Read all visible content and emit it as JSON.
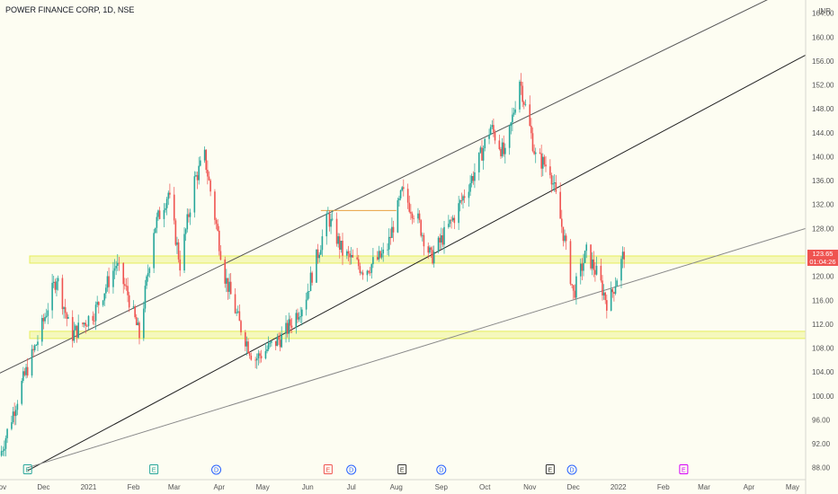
{
  "header": {
    "title": "POWER FINANCE CORP, 1D, NSE",
    "currency": "INR"
  },
  "colors": {
    "up": "#26a69a",
    "down": "#ef5350",
    "background": "#fdfdf2",
    "zone": "#e6ee5c",
    "price_tag": "#ef5350"
  },
  "price_tag": {
    "value": "123.65",
    "countdown": "01:04:26"
  },
  "chart_data": {
    "type": "candlestick",
    "title": "",
    "xlabel": "",
    "ylabel": "",
    "x_range": [
      "2020-11-01",
      "2022-05-10"
    ],
    "ylim": [
      86,
      165
    ],
    "y_ticks": [
      88,
      92,
      96,
      100,
      104,
      108,
      112,
      116,
      120,
      124,
      128,
      132,
      136,
      140,
      144,
      148,
      152,
      156,
      160,
      164
    ],
    "y_tick_labels": [
      "88.00",
      "92.00",
      "96.00",
      "100.00",
      "104.00",
      "108.00",
      "112.00",
      "116.00",
      "120.00",
      "124.00",
      "128.00",
      "132.00",
      "136.00",
      "140.00",
      "144.00",
      "148.00",
      "152.00",
      "156.00",
      "160.00",
      "164.00"
    ],
    "x_ticks": [
      {
        "date": "2020-11-01",
        "label": "Nov"
      },
      {
        "date": "2020-12-01",
        "label": "Dec"
      },
      {
        "date": "2021-01-01",
        "label": "2021"
      },
      {
        "date": "2021-02-01",
        "label": "Feb"
      },
      {
        "date": "2021-03-01",
        "label": "Mar"
      },
      {
        "date": "2021-04-01",
        "label": "Apr"
      },
      {
        "date": "2021-05-01",
        "label": "May"
      },
      {
        "date": "2021-06-01",
        "label": "Jun"
      },
      {
        "date": "2021-07-01",
        "label": "Jul"
      },
      {
        "date": "2021-08-01",
        "label": "Aug"
      },
      {
        "date": "2021-09-01",
        "label": "Sep"
      },
      {
        "date": "2021-10-01",
        "label": "Oct"
      },
      {
        "date": "2021-11-01",
        "label": "Nov"
      },
      {
        "date": "2021-12-01",
        "label": "Dec"
      },
      {
        "date": "2022-01-01",
        "label": "2022"
      },
      {
        "date": "2022-02-01",
        "label": "Feb"
      },
      {
        "date": "2022-03-01",
        "label": "Mar"
      },
      {
        "date": "2022-04-01",
        "label": "Apr"
      },
      {
        "date": "2022-05-01",
        "label": "May"
      }
    ],
    "price_path": [
      [
        "2020-11-01",
        90
      ],
      [
        "2020-11-16",
        102
      ],
      [
        "2020-11-28",
        110
      ],
      [
        "2020-12-10",
        120
      ],
      [
        "2020-12-20",
        110
      ],
      [
        "2021-01-05",
        114
      ],
      [
        "2021-01-20",
        122
      ],
      [
        "2021-01-28",
        117
      ],
      [
        "2021-02-05",
        110
      ],
      [
        "2021-02-15",
        128
      ],
      [
        "2021-02-25",
        134
      ],
      [
        "2021-03-05",
        122
      ],
      [
        "2021-03-15",
        136
      ],
      [
        "2021-03-22",
        140
      ],
      [
        "2021-04-05",
        120
      ],
      [
        "2021-04-15",
        112
      ],
      [
        "2021-04-25",
        106
      ],
      [
        "2021-05-15",
        110
      ],
      [
        "2021-05-30",
        116
      ],
      [
        "2021-06-15",
        130
      ],
      [
        "2021-06-25",
        124
      ],
      [
        "2021-07-10",
        121
      ],
      [
        "2021-07-25",
        124
      ],
      [
        "2021-08-05",
        134
      ],
      [
        "2021-08-15",
        130
      ],
      [
        "2021-08-25",
        123
      ],
      [
        "2021-09-10",
        130
      ],
      [
        "2021-09-25",
        138
      ],
      [
        "2021-10-05",
        145
      ],
      [
        "2021-10-15",
        140
      ],
      [
        "2021-10-25",
        153
      ],
      [
        "2021-11-05",
        140
      ],
      [
        "2021-11-15",
        138
      ],
      [
        "2021-11-25",
        126
      ],
      [
        "2021-12-01",
        117
      ],
      [
        "2021-12-10",
        124
      ],
      [
        "2021-12-18",
        120
      ],
      [
        "2021-12-25",
        115
      ],
      [
        "2022-01-05",
        124
      ]
    ],
    "horizontal_zones": [
      {
        "from": 122.2,
        "to": 123.4,
        "color": "#e6ee5c"
      },
      {
        "from": 109.6,
        "to": 110.8,
        "color": "#e6ee5c"
      }
    ],
    "trend_lines": [
      {
        "from": [
          "2020-10-25",
          103
        ],
        "to": [
          "2022-04-20",
          167
        ],
        "color": "#555555"
      },
      {
        "from": [
          "2020-11-20",
          87.5
        ],
        "to": [
          "2022-05-10",
          157
        ],
        "color": "#222222"
      },
      {
        "from": [
          "2020-11-20",
          88
        ],
        "to": [
          "2022-05-10",
          128
        ],
        "color": "#888888"
      },
      {
        "from": [
          "2021-06-10",
          131
        ],
        "to": [
          "2021-08-01",
          131
        ],
        "color": "#e8a040"
      }
    ],
    "events": [
      {
        "date": "2020-11-20",
        "label": "E",
        "color": "#26a69a"
      },
      {
        "date": "2021-02-15",
        "label": "E",
        "color": "#26a69a"
      },
      {
        "date": "2021-03-30",
        "label": "D",
        "color": "#2962ff"
      },
      {
        "date": "2021-06-15",
        "label": "E",
        "color": "#ef5350"
      },
      {
        "date": "2021-07-01",
        "label": "D",
        "color": "#2962ff"
      },
      {
        "date": "2021-08-05",
        "label": "E",
        "color": "#333333"
      },
      {
        "date": "2021-09-01",
        "label": "D",
        "color": "#2962ff"
      },
      {
        "date": "2021-11-15",
        "label": "E",
        "color": "#333333"
      },
      {
        "date": "2021-11-30",
        "label": "D",
        "color": "#2962ff"
      },
      {
        "date": "2022-02-15",
        "label": "E",
        "color": "#d500f9"
      }
    ]
  }
}
